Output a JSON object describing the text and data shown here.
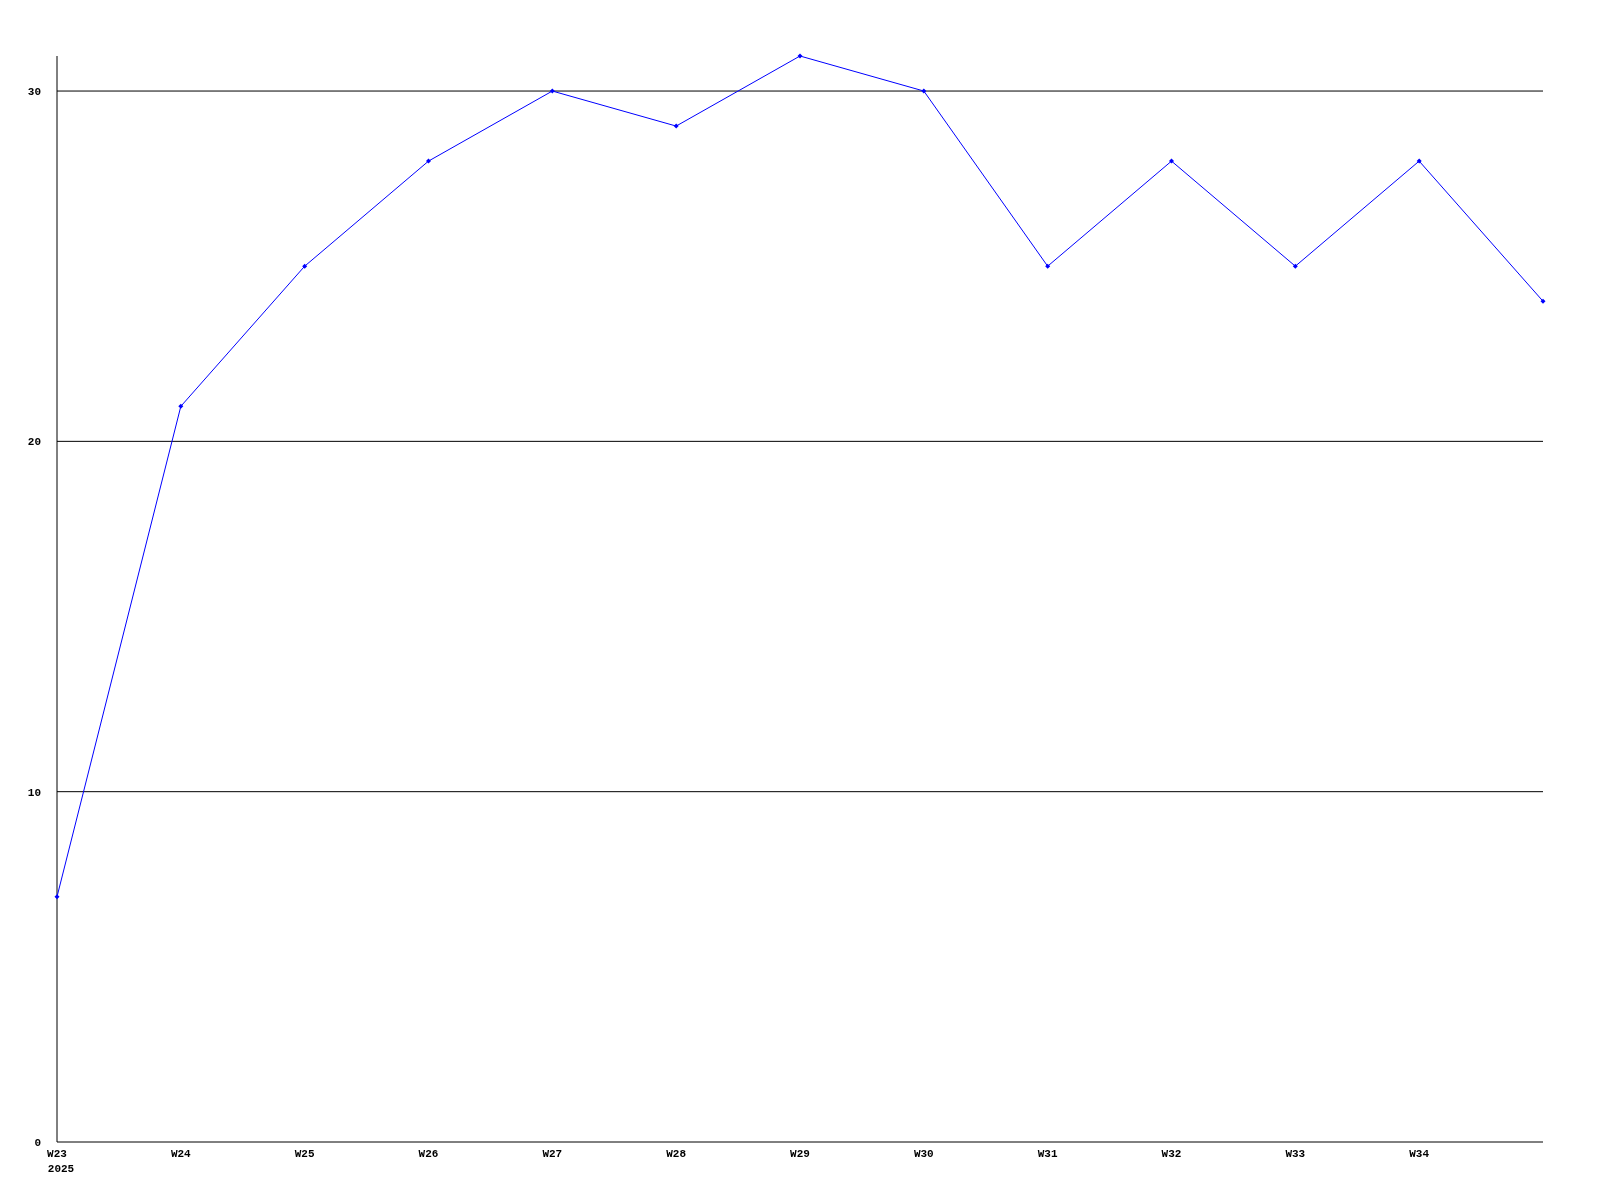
{
  "chart_data": {
    "type": "line",
    "categories": [
      "W23",
      "W24",
      "W25",
      "W26",
      "W27",
      "W28",
      "W29",
      "W30",
      "W31",
      "W32",
      "W33",
      "W34",
      null
    ],
    "series": [
      {
        "color": "#0000ff",
        "values": [
          7,
          21,
          25,
          28,
          30,
          29,
          31,
          30,
          25,
          28,
          25,
          28,
          24
        ]
      }
    ],
    "ylim": [
      0,
      31
    ],
    "yticks": [
      0,
      10,
      20,
      30
    ],
    "grid": "y",
    "marker": "diamond",
    "line_style": "solid",
    "annotations": [
      "2025"
    ]
  }
}
